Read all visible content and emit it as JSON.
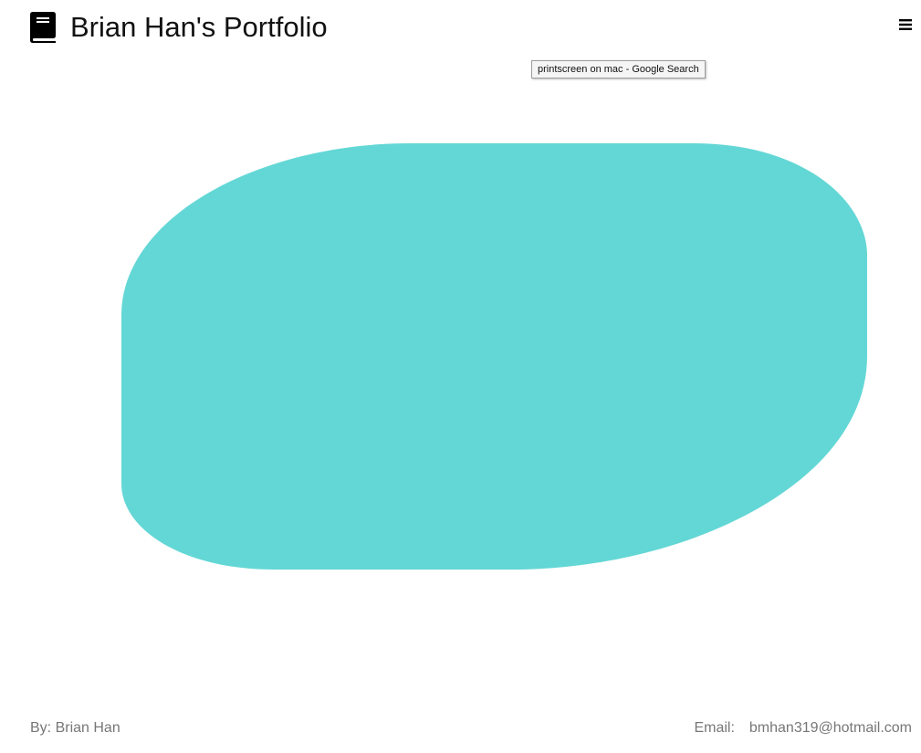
{
  "header": {
    "title": "Brian Han's Portfolio",
    "logo_icon": "book-icon",
    "menu_icon": "hamburger-menu-icon"
  },
  "tooltip": {
    "text": "printscreen on mac - Google Search"
  },
  "hero": {
    "blob_color": "#63d7d5",
    "blob_icon": "blob-shape"
  },
  "footer": {
    "author": "By: Brian Han",
    "email_label": "Email:",
    "email": "bmhan319@hotmail.com"
  }
}
